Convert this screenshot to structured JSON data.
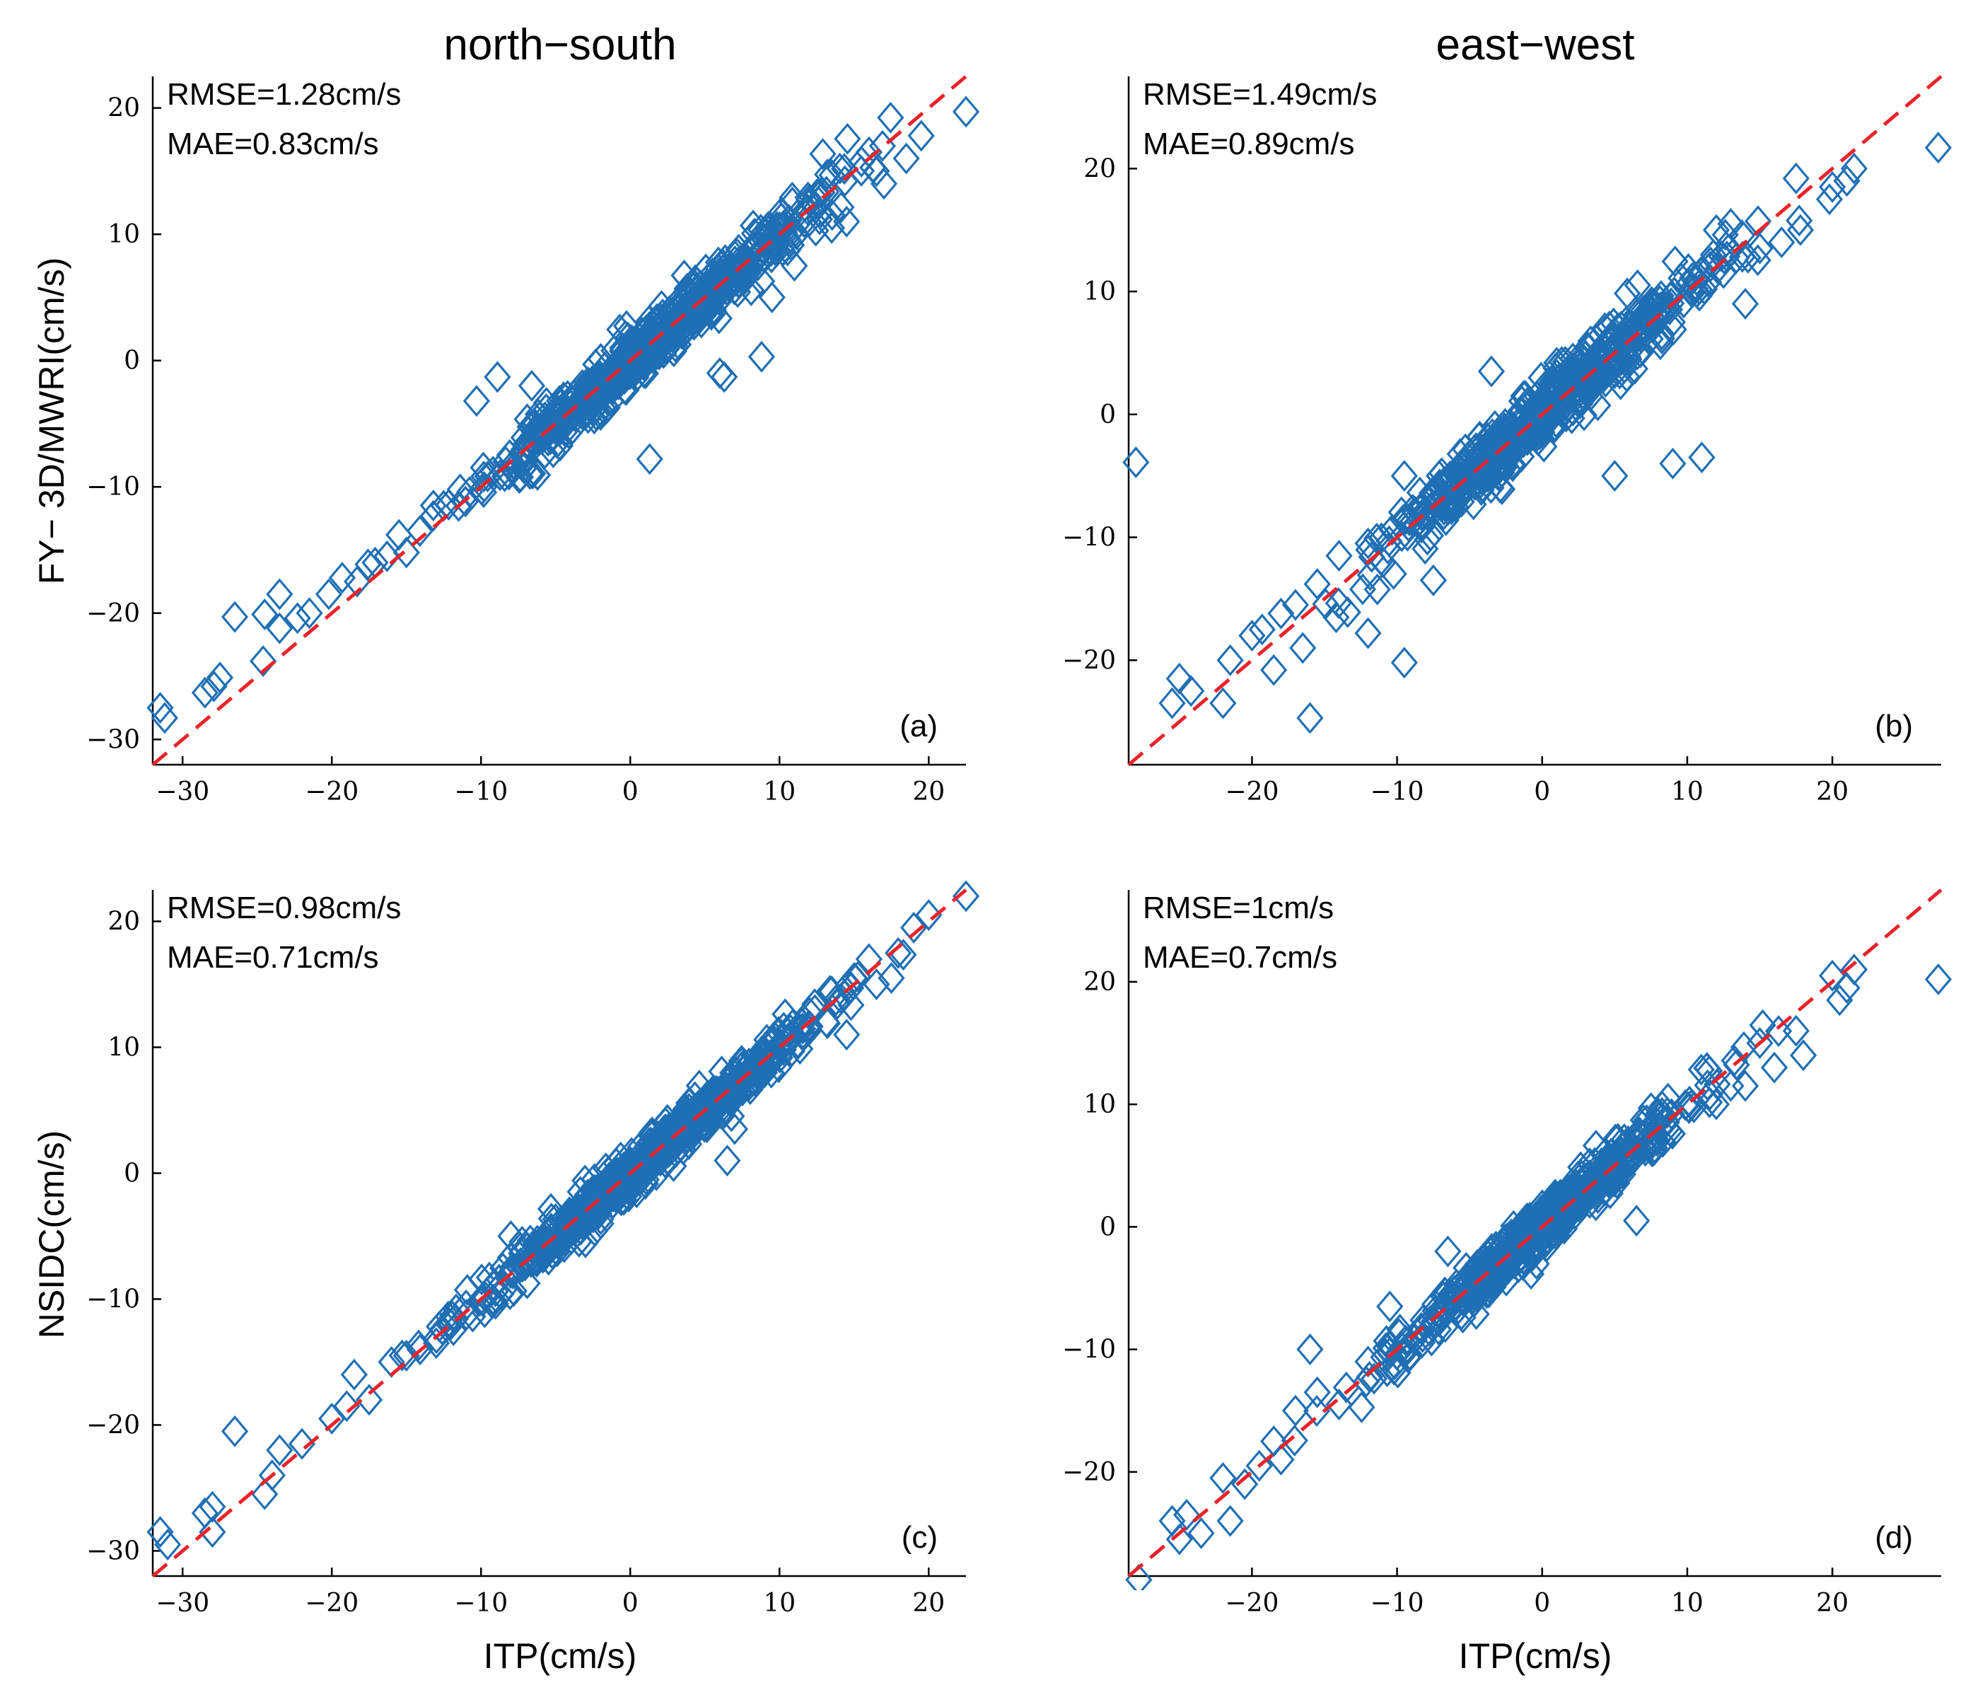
{
  "figure": {
    "col_titles": [
      "north−south",
      "east−west"
    ],
    "row_ylabels": [
      "FY− 3D/MWRI(cm/s)",
      "NSIDC(cm/s)"
    ],
    "xlabel": "ITP(cm/s)"
  },
  "colors": {
    "marker": "#1f6fb4",
    "reference_line": "#e8242a",
    "axis": "#000000"
  },
  "chart_data": [
    {
      "type": "scatter",
      "panel_label": "(a)",
      "component": "north−south",
      "xlabel": "ITP(cm/s)",
      "ylabel": "FY− 3D/MWRI(cm/s)",
      "rmse_text": "RMSE=1.28cm/s",
      "mae_text": "MAE=0.83cm/s",
      "xlim": [
        -32,
        22.5
      ],
      "ylim": [
        -32,
        22.5
      ],
      "xticks": [
        -30,
        -20,
        -10,
        0,
        10,
        20
      ],
      "yticks": [
        -30,
        -20,
        -10,
        0,
        10,
        20
      ],
      "xtick_labels": [
        "−30",
        "−20",
        "−10",
        "0",
        "10",
        "20"
      ],
      "ytick_labels": [
        "−30",
        "−20",
        "−10",
        "0",
        "10",
        "20"
      ],
      "marker": "diamond",
      "reference_line": "y = x (red dashed)",
      "scatter": {
        "seed": 11,
        "n": 600,
        "noise_sd": 1.0,
        "x_sd": 5.5,
        "x_mean": 1.5,
        "tail_min": -31.5,
        "tail_max": 22.5
      },
      "points": [
        [
          -31.5,
          -27.5
        ],
        [
          -31.2,
          -28.3
        ],
        [
          -28.5,
          -26.3
        ],
        [
          -27.9,
          -25.8
        ],
        [
          -27.5,
          -25.1
        ],
        [
          -26.5,
          -20.3
        ],
        [
          -24.5,
          -20.1
        ],
        [
          -24.6,
          -23.8
        ],
        [
          -23.5,
          -21.2
        ],
        [
          -23.5,
          -18.5
        ],
        [
          -22.3,
          -20.4
        ],
        [
          -21.5,
          -20.0
        ],
        [
          -20.2,
          -18.5
        ],
        [
          -19.3,
          -17.2
        ],
        [
          -18.3,
          -17.5
        ],
        [
          -17.1,
          -16.0
        ],
        [
          -16.3,
          -15.5
        ],
        [
          -15.5,
          -13.8
        ],
        [
          -15.0,
          -15.2
        ],
        [
          -14.1,
          -13.5
        ],
        [
          -13.2,
          -12.3
        ],
        [
          -12.5,
          -11.5
        ],
        [
          -11.4,
          -10.2
        ],
        [
          -10.3,
          -3.2
        ],
        [
          -8.9,
          -1.3
        ],
        [
          -6.6,
          -2.0
        ],
        [
          1.3,
          -7.8
        ],
        [
          6.0,
          -1.0
        ],
        [
          6.3,
          -1.3
        ],
        [
          8.8,
          0.3
        ],
        [
          16.0,
          16.5
        ],
        [
          17.0,
          14.0
        ],
        [
          18.5,
          16.0
        ],
        [
          19.5,
          17.8
        ],
        [
          22.5,
          19.7
        ],
        [
          13.5,
          10.5
        ],
        [
          14.5,
          11.0
        ],
        [
          16.5,
          15.0
        ],
        [
          11.0,
          7.5
        ],
        [
          9.5,
          5.0
        ]
      ]
    },
    {
      "type": "scatter",
      "panel_label": "(b)",
      "component": "east−west",
      "xlabel": "ITP(cm/s)",
      "ylabel": "FY− 3D/MWRI(cm/s)",
      "rmse_text": "RMSE=1.49cm/s",
      "mae_text": "MAE=0.89cm/s",
      "xlim": [
        -28.5,
        27.5
      ],
      "ylim": [
        -28.5,
        27.5
      ],
      "xticks": [
        -20,
        -10,
        0,
        10,
        20
      ],
      "yticks": [
        -20,
        -10,
        0,
        10,
        20
      ],
      "xtick_labels": [
        "−20",
        "−10",
        "0",
        "10",
        "20"
      ],
      "ytick_labels": [
        "−20",
        "−10",
        "0",
        "10",
        "20"
      ],
      "marker": "diamond",
      "reference_line": "y = x (red dashed)",
      "scatter": {
        "seed": 23,
        "n": 560,
        "noise_sd": 1.2,
        "x_sd": 5.2,
        "x_mean": 0.0,
        "tail_min": -25.0,
        "tail_max": 21.0
      },
      "points": [
        [
          -28.0,
          -3.9
        ],
        [
          -25.5,
          -23.5
        ],
        [
          -25.0,
          -21.5
        ],
        [
          -24.2,
          -22.5
        ],
        [
          -22.0,
          -23.5
        ],
        [
          -21.5,
          -20.0
        ],
        [
          -20.0,
          -18.0
        ],
        [
          -19.3,
          -17.5
        ],
        [
          -18.5,
          -20.8
        ],
        [
          -18.0,
          -16.2
        ],
        [
          -17.0,
          -15.5
        ],
        [
          -16.0,
          -24.7
        ],
        [
          -16.5,
          -19.0
        ],
        [
          -15.5,
          -13.8
        ],
        [
          -14.0,
          -11.5
        ],
        [
          -12.0,
          -10.5
        ],
        [
          -12.0,
          -17.8
        ],
        [
          -9.5,
          -20.2
        ],
        [
          -9.5,
          -5.0
        ],
        [
          -7.5,
          -13.5
        ],
        [
          -3.5,
          3.5
        ],
        [
          -3.0,
          -5.0
        ],
        [
          1.0,
          4.2
        ],
        [
          5.0,
          -5.0
        ],
        [
          9.0,
          -4.0
        ],
        [
          11.0,
          -3.5
        ],
        [
          12.0,
          15.0
        ],
        [
          12.5,
          11.5
        ],
        [
          13.0,
          15.5
        ],
        [
          14.0,
          9.0
        ],
        [
          15.0,
          13.5
        ],
        [
          16.5,
          14.0
        ],
        [
          17.5,
          19.2
        ],
        [
          17.8,
          15.0
        ],
        [
          19.8,
          17.5
        ],
        [
          20.0,
          18.5
        ],
        [
          21.0,
          19.0
        ],
        [
          21.5,
          20.0
        ],
        [
          27.3,
          21.7
        ]
      ]
    },
    {
      "type": "scatter",
      "panel_label": "(c)",
      "component": "north−south",
      "xlabel": "ITP(cm/s)",
      "ylabel": "NSIDC(cm/s)",
      "rmse_text": "RMSE=0.98cm/s",
      "mae_text": "MAE=0.71cm/s",
      "xlim": [
        -32,
        22.5
      ],
      "ylim": [
        -32,
        22.5
      ],
      "xticks": [
        -30,
        -20,
        -10,
        0,
        10,
        20
      ],
      "yticks": [
        -30,
        -20,
        -10,
        0,
        10,
        20
      ],
      "xtick_labels": [
        "−30",
        "−20",
        "−10",
        "0",
        "10",
        "20"
      ],
      "ytick_labels": [
        "−30",
        "−20",
        "−10",
        "0",
        "10",
        "20"
      ],
      "marker": "diamond",
      "reference_line": "y = x (red dashed)",
      "scatter": {
        "seed": 37,
        "n": 620,
        "noise_sd": 0.8,
        "x_sd": 5.8,
        "x_mean": 1.5,
        "tail_min": -31.5,
        "tail_max": 22.5
      },
      "points": [
        [
          -31.5,
          -28.5
        ],
        [
          -31.0,
          -29.5
        ],
        [
          -28.5,
          -27.0
        ],
        [
          -28.0,
          -26.5
        ],
        [
          -28.0,
          -28.5
        ],
        [
          -26.5,
          -20.5
        ],
        [
          -24.5,
          -25.5
        ],
        [
          -24.0,
          -24.0
        ],
        [
          -23.5,
          -22.0
        ],
        [
          -22.0,
          -21.5
        ],
        [
          -20.0,
          -19.5
        ],
        [
          -19.0,
          -18.5
        ],
        [
          -18.5,
          -16.0
        ],
        [
          -17.5,
          -18.0
        ],
        [
          -16.0,
          -15.0
        ],
        [
          -15.0,
          -14.5
        ],
        [
          -13.0,
          -13.5
        ],
        [
          -12.0,
          -12.0
        ],
        [
          -11.0,
          -10.5
        ],
        [
          -8.0,
          -5.0
        ],
        [
          -3.0,
          -5.5
        ],
        [
          6.5,
          1.0
        ],
        [
          7.0,
          3.5
        ],
        [
          14.5,
          11.0
        ],
        [
          15.0,
          15.5
        ],
        [
          16.0,
          17.0
        ],
        [
          16.5,
          15.0
        ],
        [
          17.5,
          15.5
        ],
        [
          19.0,
          19.5
        ],
        [
          20.0,
          20.5
        ],
        [
          22.5,
          22.0
        ]
      ]
    },
    {
      "type": "scatter",
      "panel_label": "(d)",
      "component": "east−west",
      "xlabel": "ITP(cm/s)",
      "ylabel": "NSIDC(cm/s)",
      "rmse_text": "RMSE=1cm/s",
      "mae_text": "MAE=0.7cm/s",
      "xlim": [
        -28.5,
        27.5
      ],
      "ylim": [
        -28.5,
        27.5
      ],
      "xticks": [
        -20,
        -10,
        0,
        10,
        20
      ],
      "yticks": [
        -20,
        -10,
        0,
        10,
        20
      ],
      "xtick_labels": [
        "−20",
        "−10",
        "0",
        "10",
        "20"
      ],
      "ytick_labels": [
        "−20",
        "−10",
        "0",
        "10",
        "20"
      ],
      "marker": "diamond",
      "reference_line": "y = x (red dashed)",
      "scatter": {
        "seed": 53,
        "n": 560,
        "noise_sd": 0.9,
        "x_sd": 5.0,
        "x_mean": 0.0,
        "tail_min": -25.0,
        "tail_max": 21.0
      },
      "points": [
        [
          -27.8,
          -28.8
        ],
        [
          -25.5,
          -24.0
        ],
        [
          -25.0,
          -25.5
        ],
        [
          -24.5,
          -23.5
        ],
        [
          -23.5,
          -25.0
        ],
        [
          -22.0,
          -20.5
        ],
        [
          -21.5,
          -24.0
        ],
        [
          -20.5,
          -21.0
        ],
        [
          -19.5,
          -19.5
        ],
        [
          -18.5,
          -17.5
        ],
        [
          -18.0,
          -19.0
        ],
        [
          -17.0,
          -15.0
        ],
        [
          -16.0,
          -10.0
        ],
        [
          -15.5,
          -13.5
        ],
        [
          -14.0,
          -14.5
        ],
        [
          -12.0,
          -11.0
        ],
        [
          -10.5,
          -6.5
        ],
        [
          -6.5,
          -2.0
        ],
        [
          6.5,
          0.5
        ],
        [
          12.0,
          10.0
        ],
        [
          13.0,
          11.5
        ],
        [
          14.0,
          11.5
        ],
        [
          15.0,
          15.0
        ],
        [
          16.0,
          13.0
        ],
        [
          17.5,
          16.0
        ],
        [
          18.0,
          14.0
        ],
        [
          20.0,
          20.5
        ],
        [
          20.5,
          18.5
        ],
        [
          21.0,
          19.5
        ],
        [
          21.5,
          21.0
        ],
        [
          27.3,
          20.2
        ]
      ]
    }
  ]
}
